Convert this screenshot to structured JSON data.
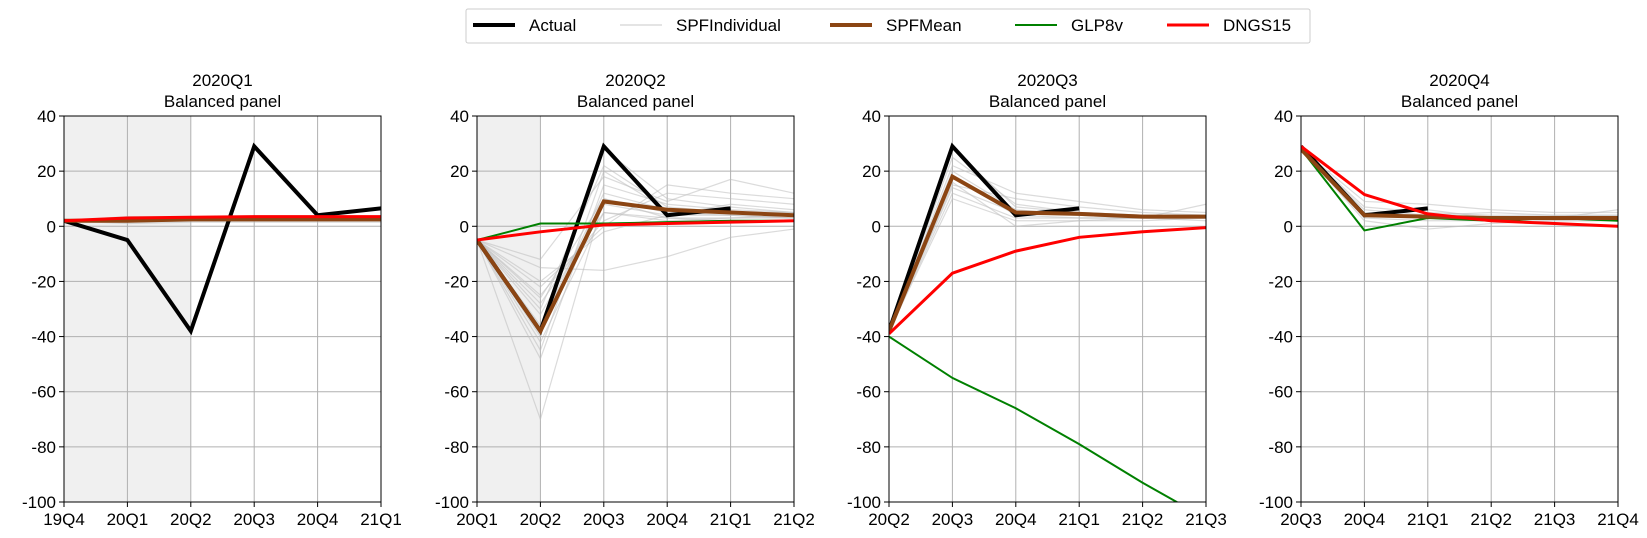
{
  "legend": {
    "placement": "top-center",
    "entries": [
      {
        "label": "Actual",
        "color": "#000000"
      },
      {
        "label": "SPFIndividual",
        "color": "#d3d3d3"
      },
      {
        "label": "SPFMean",
        "color": "#8b4513"
      },
      {
        "label": "GLP8v",
        "color": "#008000"
      },
      {
        "label": "DNGS15",
        "color": "#ff0000"
      }
    ]
  },
  "series_styles": {
    "Actual": {
      "color": "#000000"
    },
    "SPFIndividual": {
      "color": "#bdbdbd"
    },
    "SPFMean": {
      "color": "#8b4513"
    },
    "GLP8v": {
      "color": "#008000"
    },
    "DNGS15": {
      "color": "#ff0000"
    }
  },
  "chart_data": [
    {
      "type": "line",
      "title": "2020Q1",
      "subtitle": "Balanced panel",
      "x": [
        "19Q4",
        "20Q1",
        "20Q2",
        "20Q3",
        "20Q4",
        "21Q1"
      ],
      "ylim": [
        -100,
        40
      ],
      "yticks": [
        40,
        20,
        0,
        -20,
        -40,
        -60,
        -80,
        -100
      ],
      "grid": true,
      "shaded_x_range": [
        "19Q4",
        "20Q2"
      ],
      "series": [
        {
          "name": "Actual",
          "values": [
            2,
            -5,
            -38,
            29,
            4,
            6.5
          ]
        },
        {
          "name": "SPFMean",
          "values": [
            2,
            2,
            2.5,
            2.5,
            2.5,
            2.5
          ]
        },
        {
          "name": "GLP8v",
          "values": [
            2,
            2.5,
            2.5,
            2.5,
            2.5,
            2.5
          ]
        },
        {
          "name": "DNGS15",
          "values": [
            2,
            3,
            3.3,
            3.5,
            3.5,
            3.5
          ]
        }
      ],
      "individual_forecasts": [
        [
          2,
          1,
          1.5,
          1.5,
          1.5,
          1.5
        ],
        [
          2,
          1.5,
          2,
          2,
          2,
          2
        ],
        [
          2,
          2,
          2,
          2,
          2,
          2
        ],
        [
          2,
          2.5,
          2.5,
          2.5,
          2.5,
          2.5
        ],
        [
          2,
          3,
          3,
          3,
          3,
          3
        ],
        [
          2,
          3.5,
          3.2,
          3.2,
          3.2,
          3.2
        ],
        [
          2,
          1.8,
          2.2,
          2.2,
          2.1,
          2.1
        ]
      ]
    },
    {
      "type": "line",
      "title": "2020Q2",
      "subtitle": "Balanced panel",
      "x": [
        "20Q1",
        "20Q2",
        "20Q3",
        "20Q4",
        "21Q1",
        "21Q2"
      ],
      "ylim": [
        -100,
        40
      ],
      "yticks": [
        40,
        20,
        0,
        -20,
        -40,
        -60,
        -80,
        -100
      ],
      "grid": true,
      "shaded_x_range": [
        "20Q1",
        "20Q2"
      ],
      "series": [
        {
          "name": "Actual",
          "values": [
            -5,
            -38,
            29,
            4,
            6.5,
            null
          ]
        },
        {
          "name": "SPFMean",
          "values": [
            -5,
            -38,
            9,
            6,
            5,
            4
          ]
        },
        {
          "name": "GLP8v",
          "values": [
            -5,
            1,
            1,
            1.5,
            2,
            2
          ]
        },
        {
          "name": "DNGS15",
          "values": [
            -5,
            -2,
            0.5,
            1,
            1.5,
            2
          ]
        }
      ],
      "individual_forecasts": [
        [
          -5,
          -70,
          10,
          5,
          4,
          3
        ],
        [
          -5,
          -48,
          15,
          8,
          6,
          5
        ],
        [
          -5,
          -45,
          20,
          6,
          5,
          4
        ],
        [
          -5,
          -40,
          28,
          10,
          7,
          5
        ],
        [
          -5,
          -36,
          12,
          6,
          5,
          4
        ],
        [
          -5,
          -32,
          8,
          4,
          4,
          3
        ],
        [
          -5,
          -28,
          5,
          3,
          3,
          3
        ],
        [
          -5,
          -25,
          2,
          12,
          10,
          8
        ],
        [
          -5,
          -22,
          0,
          15,
          12,
          10
        ],
        [
          -5,
          -20,
          -2,
          4,
          8,
          6
        ],
        [
          -5,
          -15,
          -16,
          -11,
          -4,
          -1
        ],
        [
          -5,
          -12,
          18,
          9,
          17,
          12
        ],
        [
          -5,
          -30,
          22,
          7,
          5,
          5
        ],
        [
          -5,
          -42,
          5,
          2,
          3,
          4
        ],
        [
          -5,
          -26,
          10,
          3,
          2,
          2
        ]
      ]
    },
    {
      "type": "line",
      "title": "2020Q3",
      "subtitle": "Balanced panel",
      "x": [
        "20Q2",
        "20Q3",
        "20Q4",
        "21Q1",
        "21Q2",
        "21Q3"
      ],
      "ylim": [
        -100,
        40
      ],
      "yticks": [
        40,
        20,
        0,
        -20,
        -40,
        -60,
        -80,
        -100
      ],
      "grid": true,
      "shaded_x_range": null,
      "series": [
        {
          "name": "Actual",
          "values": [
            -38,
            29,
            4,
            6.5,
            null,
            null
          ]
        },
        {
          "name": "SPFMean",
          "values": [
            -38,
            18,
            5,
            4.5,
            3.5,
            3.5
          ]
        },
        {
          "name": "GLP8v",
          "values": [
            -40,
            -55,
            -66,
            -79,
            -93,
            -106
          ]
        },
        {
          "name": "DNGS15",
          "values": [
            -39,
            -17,
            -9,
            -4,
            -2,
            -0.5
          ]
        }
      ],
      "individual_forecasts": [
        [
          -38,
          25,
          8,
          5,
          4,
          4
        ],
        [
          -38,
          20,
          6,
          4,
          3,
          3
        ],
        [
          -38,
          15,
          10,
          7,
          5,
          4
        ],
        [
          -38,
          12,
          3,
          3,
          3,
          3
        ],
        [
          -38,
          10,
          2,
          2,
          2,
          3
        ],
        [
          -38,
          22,
          12,
          9,
          6,
          5
        ],
        [
          -38,
          18,
          4,
          3,
          3,
          8
        ],
        [
          -38,
          16,
          0,
          2,
          3,
          3
        ],
        [
          -38,
          28,
          7,
          5,
          4,
          4
        ],
        [
          -38,
          14,
          5,
          4,
          3,
          2
        ]
      ]
    },
    {
      "type": "line",
      "title": "2020Q4",
      "subtitle": "Balanced panel",
      "x": [
        "20Q3",
        "20Q4",
        "21Q1",
        "21Q2",
        "21Q3",
        "21Q4"
      ],
      "ylim": [
        -100,
        40
      ],
      "yticks": [
        40,
        20,
        0,
        -20,
        -40,
        -60,
        -80,
        -100
      ],
      "grid": true,
      "shaded_x_range": null,
      "series": [
        {
          "name": "Actual",
          "values": [
            29,
            4,
            6.5,
            null,
            null,
            null
          ]
        },
        {
          "name": "SPFMean",
          "values": [
            28,
            4,
            3.5,
            3,
            3,
            3
          ]
        },
        {
          "name": "GLP8v",
          "values": [
            28,
            -1.5,
            3,
            2,
            3,
            2
          ]
        },
        {
          "name": "DNGS15",
          "values": [
            29,
            11.5,
            4.5,
            2,
            1,
            0
          ]
        }
      ],
      "individual_forecasts": [
        [
          28,
          9,
          8,
          6,
          5,
          5
        ],
        [
          28,
          7,
          5,
          4,
          4,
          4
        ],
        [
          28,
          5,
          3,
          3,
          3,
          3
        ],
        [
          28,
          3,
          2,
          2,
          2,
          2
        ],
        [
          28,
          2,
          -1,
          1,
          2,
          2
        ],
        [
          28,
          6,
          4,
          5,
          4,
          4
        ],
        [
          28,
          4,
          6,
          3,
          3,
          6
        ]
      ]
    }
  ]
}
